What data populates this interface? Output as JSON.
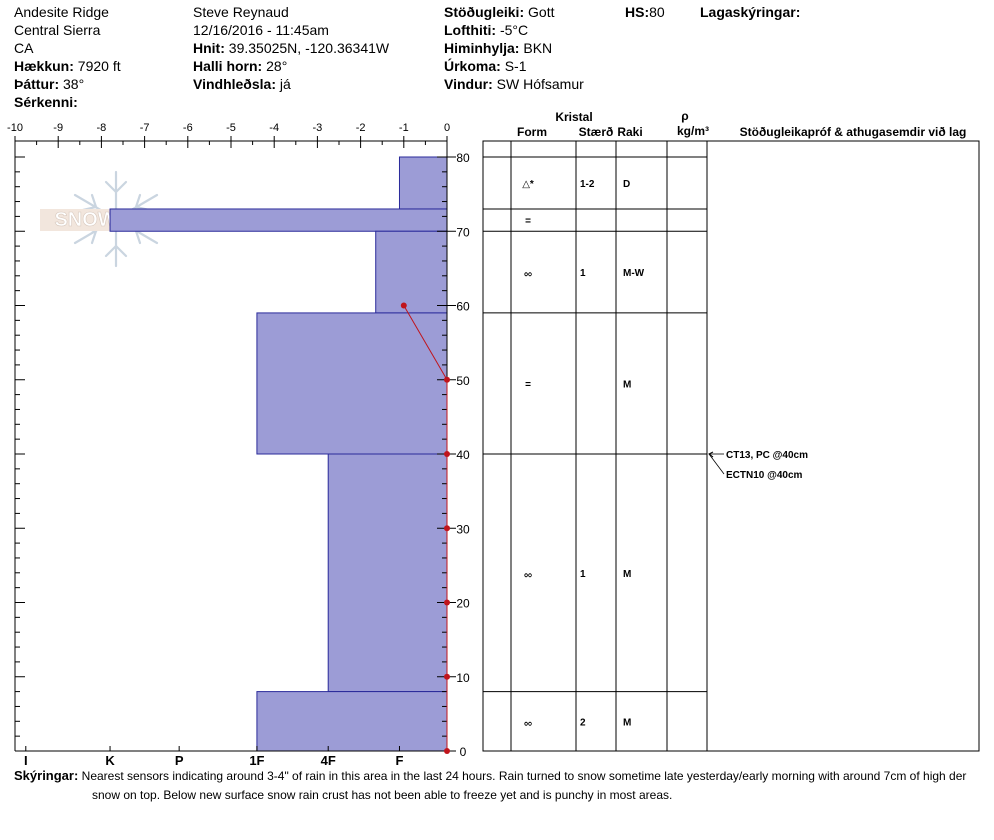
{
  "header": {
    "location": "Andesite Ridge",
    "range": "Central Sierra",
    "state": "CA",
    "elevation_label": "Hækkun:",
    "elevation": "7920 ft",
    "aspect_label": "Þáttur:",
    "aspect": "38°",
    "features_label": "Sérkenni:",
    "observer": "Steve Reynaud",
    "datetime": "12/16/2016 - 11:45am",
    "coords_label": "Hnit:",
    "coords": "39.35025N, -120.36341W",
    "slope_label": "Halli horn:",
    "slope": "28°",
    "wind_loading_label": "Vindhleðsla:",
    "wind_loading": "já",
    "stability_label": "Stöðugleiki:",
    "stability": "Gott",
    "air_temp_label": "Lofthiti:",
    "air_temp": "-5°C",
    "sky_label": "Himinhylja:",
    "sky": "BKN",
    "precip_label": "Úrkoma:",
    "precip": "S-1",
    "wind_label": "Vindur:",
    "wind": "SW Hófsamur",
    "hs_label": "HS:",
    "hs": "80",
    "layers_label": "Lagaskýringar:"
  },
  "logo": {
    "text": "SNOWPILOT"
  },
  "columns": {
    "crystal": "Kristal",
    "form": "Form",
    "size": "Stærð",
    "moisture": "Raki",
    "rho": "ρ",
    "density_unit": "kg/m³",
    "tests": "Stöðugleikapróf & athugasemdir við lag"
  },
  "chart_data": {
    "type": "snow-profile",
    "temperature_axis": {
      "range": [
        -10,
        0
      ],
      "ticks": [
        "-10",
        "-9",
        "-8",
        "-7",
        "-6",
        "-5",
        "-4",
        "-3",
        "-2",
        "-1",
        "0"
      ]
    },
    "height_axis": {
      "range": [
        0,
        80
      ],
      "ticks": [
        "0",
        "10",
        "20",
        "30",
        "40",
        "50",
        "60",
        "70",
        "80"
      ],
      "unit": "cm"
    },
    "hardness_axis": {
      "labels": [
        "I",
        "K",
        "P",
        "1F",
        "4F",
        "F"
      ],
      "values": [
        -9.75,
        -7.8,
        -6.2,
        -4.4,
        -2.75,
        -1.1
      ]
    },
    "hardness_layers": [
      {
        "bottom": 73,
        "top": 80,
        "hardness_temp": -1.1
      },
      {
        "bottom": 70,
        "top": 73,
        "hardness_temp": -7.8
      },
      {
        "bottom": 59,
        "top": 70,
        "hardness_temp": -1.65
      },
      {
        "bottom": 40,
        "top": 59,
        "hardness_temp": -4.4
      },
      {
        "bottom": 8,
        "top": 40,
        "hardness_temp": -2.75
      },
      {
        "bottom": 0,
        "top": 8,
        "hardness_temp": -4.4
      }
    ],
    "temperature_profile": [
      {
        "height": 60,
        "temp": -1
      },
      {
        "height": 50,
        "temp": 0
      },
      {
        "height": 40,
        "temp": 0
      },
      {
        "height": 30,
        "temp": 0
      },
      {
        "height": 20,
        "temp": 0
      },
      {
        "height": 10,
        "temp": 0
      },
      {
        "height": 0,
        "temp": 0
      }
    ],
    "layers": [
      {
        "top": 80,
        "bottom": 73,
        "form": "△*",
        "size": "1-2",
        "moisture": "D"
      },
      {
        "top": 73,
        "bottom": 70,
        "form": "=",
        "size": "",
        "moisture": ""
      },
      {
        "top": 70,
        "bottom": 59,
        "form": "ೲ",
        "size": "1",
        "moisture": "M-W"
      },
      {
        "top": 59,
        "bottom": 40,
        "form": "=",
        "size": "",
        "moisture": "M"
      },
      {
        "top": 40,
        "bottom": 8,
        "form": "ೲ",
        "size": "1",
        "moisture": "M"
      },
      {
        "top": 8,
        "bottom": 0,
        "form": "ೲ",
        "size": "2",
        "moisture": "M"
      }
    ],
    "tests": [
      {
        "height": 40,
        "text": "CT13, PC @40cm"
      },
      {
        "height": 40,
        "text": "ECTN10 @40cm"
      }
    ],
    "colors": {
      "hardness_fill": "#9c9cd6",
      "hardness_stroke": "#2a2a9a",
      "temp_line": "#c0141c"
    }
  },
  "notes": {
    "label": "Skýringar:",
    "text": "Nearest sensors indicating around 3-4\" of rain in this area in the last 24 hours.  Rain turned to snow sometime late yesterday/early morning with around 7cm of high der",
    "text2": "snow on top.  Below new surface snow rain crust has not been able to freeze yet and is punchy in most areas."
  }
}
